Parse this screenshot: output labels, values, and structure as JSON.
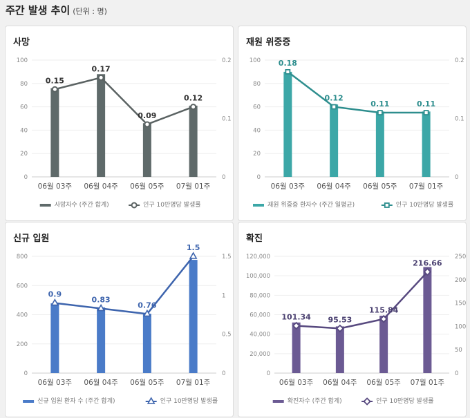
{
  "header": {
    "title": "주간 발생 추이",
    "unit": "(단위 : 명)"
  },
  "chart_data": [
    {
      "type": "bar+line",
      "title": "사망",
      "categories": [
        "06월 03주",
        "06월 04주",
        "06월 05주",
        "07월 01주"
      ],
      "bar": {
        "name": "사망자수 (주간 합계)",
        "values": [
          76,
          88,
          46,
          61
        ],
        "color": "#5f6a6a"
      },
      "line": {
        "name": "인구 10만명당 발생률",
        "values": [
          0.15,
          0.17,
          0.09,
          0.12
        ],
        "labels": [
          "0.15",
          "0.17",
          "0.09",
          "0.12"
        ],
        "color": "#5a6262",
        "label_color": "#333333",
        "marker": "circle"
      },
      "left_ticks": [
        "0",
        "20",
        "40",
        "60",
        "80",
        "100"
      ],
      "ylim": [
        0,
        100
      ],
      "right_ticks": [
        "0",
        "0.1",
        "0.2"
      ],
      "y2lim": [
        0,
        0.2
      ]
    },
    {
      "type": "bar+line",
      "title": "재원 위중증",
      "categories": [
        "06월 03주",
        "06월 04주",
        "06월 05주",
        "07월 01주"
      ],
      "bar": {
        "name": "재원 위중증 환자수 (주간 일평균)",
        "values": [
          90,
          62,
          56,
          56
        ],
        "color": "#3ca7a7"
      },
      "line": {
        "name": "인구 10만명당 발생률",
        "values": [
          0.18,
          0.12,
          0.11,
          0.11
        ],
        "labels": [
          "0.18",
          "0.12",
          "0.11",
          "0.11"
        ],
        "color": "#2e8e8e",
        "label_color": "#2e8e8e",
        "marker": "square"
      },
      "left_ticks": [
        "0",
        "20",
        "40",
        "60",
        "80",
        "100"
      ],
      "ylim": [
        0,
        100
      ],
      "right_ticks": [
        "0",
        "0.1",
        "0.2"
      ],
      "y2lim": [
        0,
        0.2
      ]
    },
    {
      "type": "bar+line",
      "title": "신규 입원",
      "categories": [
        "06월 03주",
        "06월 04주",
        "06월 05주",
        "07월 01주"
      ],
      "bar": {
        "name": "신규 입원 환자 수 (주간 합계)",
        "values": [
          478,
          450,
          407,
          776
        ],
        "color": "#4a7bc8"
      },
      "line": {
        "name": "인구 10만명당 발생률",
        "values": [
          0.9,
          0.83,
          0.76,
          1.5
        ],
        "labels": [
          "0.9",
          "0.83",
          "0.76",
          "1.5"
        ],
        "color": "#3d64ad",
        "label_color": "#3d64ad",
        "marker": "triangle"
      },
      "left_ticks": [
        "0",
        "200",
        "400",
        "600",
        "800"
      ],
      "ylim": [
        0,
        800
      ],
      "right_ticks": [
        "0",
        "0.5",
        "1",
        "1.5"
      ],
      "y2lim": [
        0,
        1.5
      ]
    },
    {
      "type": "bar+line",
      "title": "확진",
      "categories": [
        "06월 03주",
        "06월 04주",
        "06월 05주",
        "07월 01주"
      ],
      "bar": {
        "name": "확진자수 (주간 합계)",
        "values": [
          52000,
          48000,
          59000,
          109000
        ],
        "color": "#6b5a93"
      },
      "line": {
        "name": "인구 10만명당 발생률",
        "values": [
          101.34,
          95.53,
          115.84,
          216.66
        ],
        "labels": [
          "101.34",
          "95.53",
          "115.84",
          "216.66"
        ],
        "color": "#57497f",
        "label_color": "#4a4070",
        "marker": "diamond"
      },
      "left_ticks": [
        "0",
        "20,000",
        "40,000",
        "60,000",
        "80,000",
        "100,000",
        "120,000"
      ],
      "ylim": [
        0,
        120000
      ],
      "right_ticks": [
        "0",
        "50",
        "100",
        "150",
        "200",
        "250"
      ],
      "y2lim": [
        0,
        250
      ]
    }
  ]
}
